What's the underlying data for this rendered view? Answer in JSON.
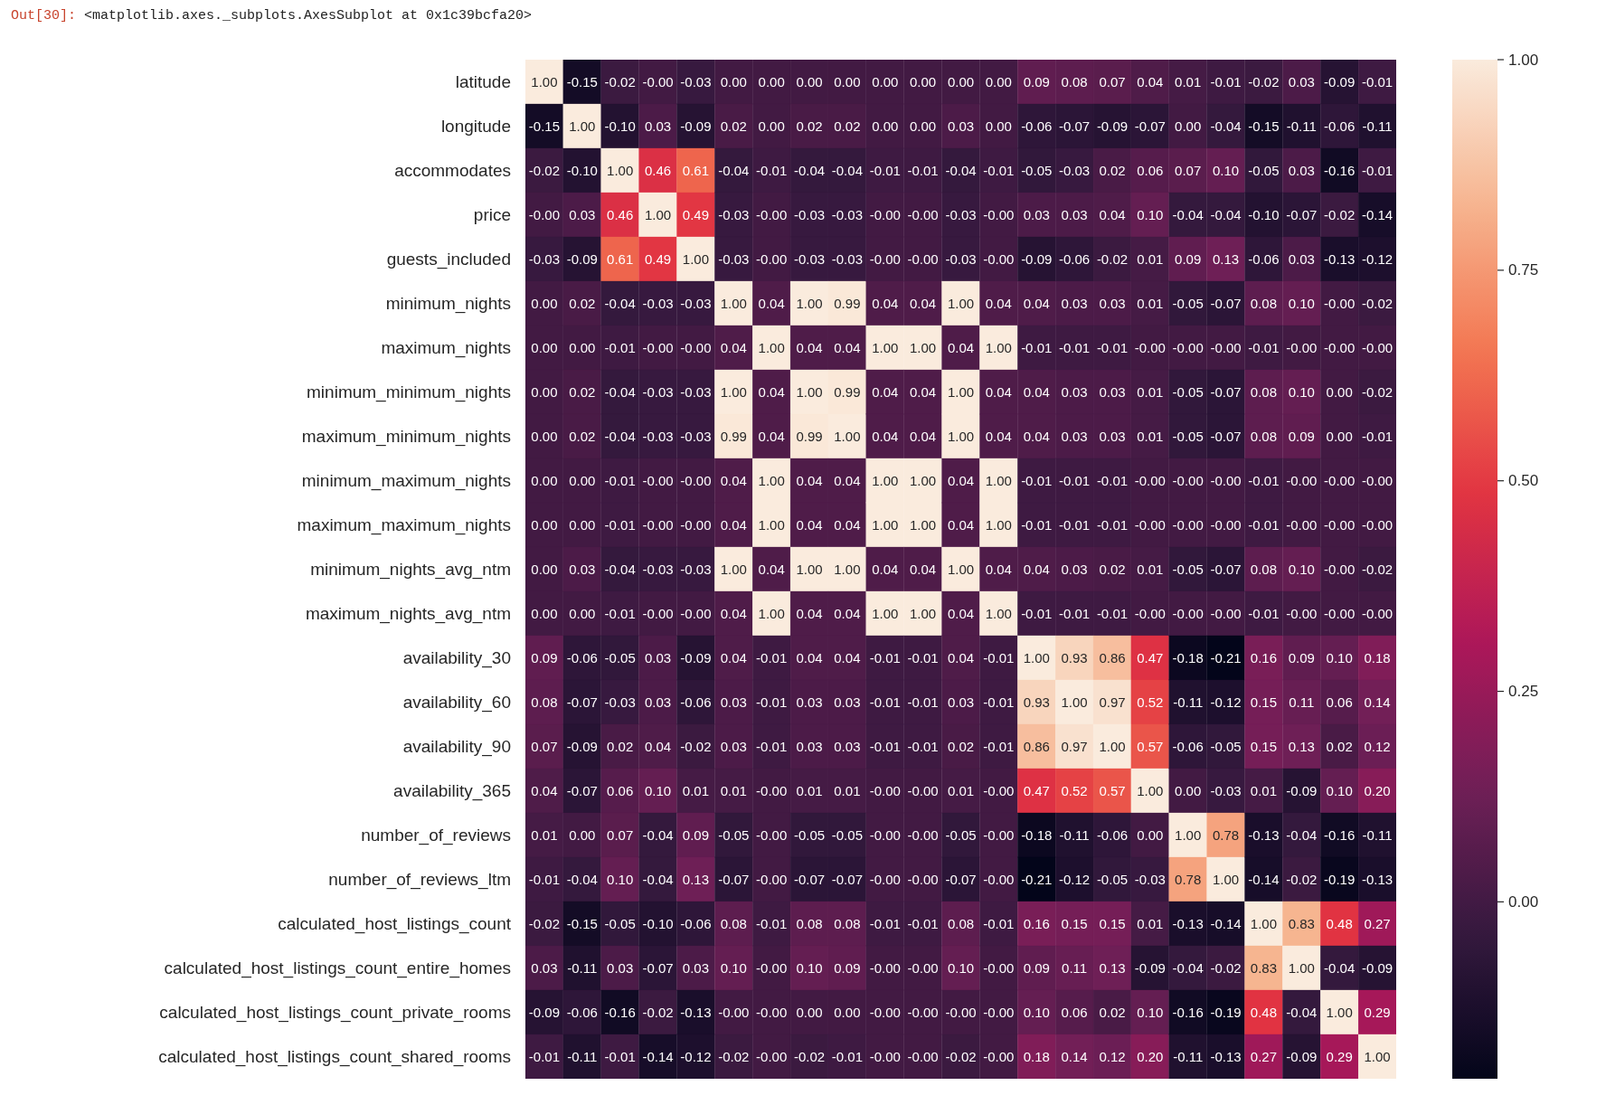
{
  "chart_data": {
    "type": "heatmap",
    "annotations": [
      "Out[30]:",
      "<matplotlib.axes._subplots.AxesSubplot at 0x1c39bcfa20>"
    ],
    "categories": [
      null,
      null,
      null,
      null,
      null,
      null,
      null,
      null,
      null,
      null,
      null,
      null,
      null,
      null,
      null,
      null,
      null,
      null,
      null,
      null,
      null,
      null,
      null
    ],
    "y_categories": [
      "latitude",
      "longitude",
      "accommodates",
      "price",
      "guests_included",
      "minimum_nights",
      "maximum_nights",
      "minimum_minimum_nights",
      "maximum_minimum_nights",
      "minimum_maximum_nights",
      "maximum_maximum_nights",
      "minimum_nights_avg_ntm",
      "maximum_nights_avg_ntm",
      "availability_30",
      "availability_60",
      "availability_90",
      "availability_365",
      "number_of_reviews",
      "number_of_reviews_ltm",
      "calculated_host_listings_count",
      "calculated_host_listings_count_entire_homes",
      "calculated_host_listings_count_private_rooms",
      "calculated_host_listings_count_shared_rooms"
    ],
    "cells": [
      [
        1,
        -0.15,
        -0.02,
        0,
        -0.03,
        0,
        0,
        0,
        0,
        0,
        0,
        0,
        0,
        0.09,
        0.08,
        0.07,
        0.04,
        0.01,
        -0.01,
        -0.02,
        0.03,
        -0.09,
        -0.01
      ],
      [
        -0.15,
        1,
        -0.1,
        0.03,
        -0.09,
        0.02,
        0,
        0.02,
        0.02,
        0,
        0,
        0.03,
        0,
        -0.06,
        -0.07,
        -0.09,
        -0.07,
        0,
        -0.04,
        -0.15,
        -0.11,
        -0.06,
        -0.11
      ],
      [
        -0.02,
        -0.1,
        1,
        0.46,
        0.61,
        -0.04,
        -0.01,
        -0.04,
        -0.04,
        -0.01,
        -0.01,
        -0.04,
        -0.01,
        -0.05,
        -0.03,
        0.02,
        0.06,
        0.07,
        0.1,
        -0.05,
        0.03,
        -0.16,
        -0.01
      ],
      [
        0,
        0.03,
        0.46,
        1,
        0.49,
        -0.03,
        0,
        -0.03,
        -0.03,
        0,
        0,
        -0.03,
        0,
        0.03,
        0.03,
        0.04,
        0.1,
        -0.04,
        -0.04,
        -0.1,
        -0.07,
        -0.02,
        -0.14
      ],
      [
        -0.03,
        -0.09,
        0.61,
        0.49,
        1,
        -0.03,
        0,
        -0.03,
        -0.03,
        0,
        0,
        -0.03,
        0,
        -0.09,
        -0.06,
        -0.02,
        0.01,
        0.09,
        0.13,
        -0.06,
        0.03,
        -0.13,
        -0.12
      ],
      [
        0,
        0.02,
        -0.04,
        -0.03,
        -0.03,
        1,
        0.04,
        1,
        0.99,
        0.04,
        0.04,
        1,
        0.04,
        0.04,
        0.03,
        0.03,
        0.01,
        -0.05,
        -0.07,
        0.08,
        0.1,
        0,
        -0.02
      ],
      [
        0,
        0,
        -0.01,
        0,
        0,
        0.04,
        1,
        0.04,
        0.04,
        1,
        1,
        0.04,
        1,
        -0.01,
        -0.01,
        -0.01,
        0,
        0,
        0,
        -0.01,
        0,
        0,
        0
      ],
      [
        0,
        0.02,
        -0.04,
        -0.03,
        -0.03,
        1,
        0.04,
        1,
        0.99,
        0.04,
        0.04,
        1,
        0.04,
        0.04,
        0.03,
        0.03,
        0.01,
        -0.05,
        -0.07,
        0.08,
        0.1,
        0,
        -0.02
      ],
      [
        0,
        0.02,
        -0.04,
        -0.03,
        -0.03,
        0.99,
        0.04,
        0.99,
        1,
        0.04,
        0.04,
        1,
        0.04,
        0.04,
        0.03,
        0.03,
        0.01,
        -0.05,
        -0.07,
        0.08,
        0.09,
        0,
        -0.01
      ],
      [
        0,
        0,
        -0.01,
        0,
        0,
        0.04,
        1,
        0.04,
        0.04,
        1,
        1,
        0.04,
        1,
        -0.01,
        -0.01,
        -0.01,
        0,
        0,
        0,
        -0.01,
        0,
        0,
        0
      ],
      [
        0,
        0,
        -0.01,
        0,
        0,
        0.04,
        1,
        0.04,
        0.04,
        1,
        1,
        0.04,
        1,
        -0.01,
        -0.01,
        -0.01,
        0,
        0,
        0,
        -0.01,
        0,
        0,
        0
      ],
      [
        0,
        0.03,
        -0.04,
        -0.03,
        -0.03,
        1,
        0.04,
        1,
        1,
        0.04,
        0.04,
        1,
        0.04,
        0.04,
        0.03,
        0.02,
        0.01,
        -0.05,
        -0.07,
        0.08,
        0.1,
        0,
        -0.02
      ],
      [
        0,
        0,
        -0.01,
        0,
        0,
        0.04,
        1,
        0.04,
        0.04,
        1,
        1,
        0.04,
        1,
        -0.01,
        -0.01,
        -0.01,
        0,
        0,
        0,
        -0.01,
        0,
        0,
        0
      ],
      [
        0.09,
        -0.06,
        -0.05,
        0.03,
        -0.09,
        0.04,
        -0.01,
        0.04,
        0.04,
        -0.01,
        -0.01,
        0.04,
        -0.01,
        1,
        0.93,
        0.86,
        0.47,
        -0.18,
        -0.21,
        0.16,
        0.09,
        0.1,
        0.18
      ],
      [
        0.08,
        -0.07,
        -0.03,
        0.03,
        -0.06,
        0.03,
        -0.01,
        0.03,
        0.03,
        -0.01,
        -0.01,
        0.03,
        -0.01,
        0.93,
        1,
        0.97,
        0.52,
        -0.11,
        -0.12,
        0.15,
        0.11,
        0.06,
        0.14
      ],
      [
        0.07,
        -0.09,
        0.02,
        0.04,
        -0.02,
        0.03,
        -0.01,
        0.03,
        0.03,
        -0.01,
        -0.01,
        0.02,
        -0.01,
        0.86,
        0.97,
        1,
        0.57,
        -0.06,
        -0.05,
        0.15,
        0.13,
        0.02,
        0.12
      ],
      [
        0.04,
        -0.07,
        0.06,
        0.1,
        0.01,
        0.01,
        0,
        0.01,
        0.01,
        0,
        0,
        0.01,
        0,
        0.47,
        0.52,
        0.57,
        1,
        0,
        -0.03,
        0.01,
        -0.09,
        0.1,
        0.2
      ],
      [
        0.01,
        0,
        0.07,
        -0.04,
        0.09,
        -0.05,
        0,
        -0.05,
        -0.05,
        0,
        0,
        -0.05,
        0,
        -0.18,
        -0.11,
        -0.06,
        0,
        1,
        0.78,
        -0.13,
        -0.04,
        -0.16,
        -0.11
      ],
      [
        -0.01,
        -0.04,
        0.1,
        -0.04,
        0.13,
        -0.07,
        0,
        -0.07,
        -0.07,
        0,
        0,
        -0.07,
        0,
        -0.21,
        -0.12,
        -0.05,
        -0.03,
        0.78,
        1,
        -0.14,
        -0.02,
        -0.19,
        -0.13
      ],
      [
        -0.02,
        -0.15,
        -0.05,
        -0.1,
        -0.06,
        0.08,
        -0.01,
        0.08,
        0.08,
        -0.01,
        -0.01,
        0.08,
        -0.01,
        0.16,
        0.15,
        0.15,
        0.01,
        -0.13,
        -0.14,
        1,
        0.83,
        0.48,
        0.27
      ],
      [
        0.03,
        -0.11,
        0.03,
        -0.07,
        0.03,
        0.1,
        0,
        0.1,
        0.09,
        0,
        0,
        0.1,
        0,
        0.09,
        0.11,
        0.13,
        -0.09,
        -0.04,
        -0.02,
        0.83,
        1,
        -0.04,
        -0.09
      ],
      [
        -0.09,
        -0.06,
        -0.16,
        -0.02,
        -0.13,
        0,
        0,
        0,
        0,
        0,
        0,
        0,
        0,
        0.1,
        0.06,
        0.02,
        0.1,
        -0.16,
        -0.19,
        0.48,
        -0.04,
        1,
        0.29
      ],
      [
        -0.01,
        -0.11,
        -0.01,
        -0.14,
        -0.12,
        -0.02,
        0,
        -0.02,
        -0.01,
        0,
        0,
        -0.02,
        0,
        0.18,
        0.14,
        0.12,
        0.2,
        -0.11,
        -0.13,
        0.27,
        -0.09,
        0.29,
        1
      ]
    ],
    "cell_labels": [
      [
        "1.00",
        "-0.15",
        "-0.02",
        "-0.00",
        "-0.03",
        "0.00",
        "0.00",
        "0.00",
        "0.00",
        "0.00",
        "0.00",
        "0.00",
        "0.00",
        "0.09",
        "0.08",
        "0.07",
        "0.04",
        "0.01",
        "-0.01",
        "-0.02",
        "0.03",
        "-0.09",
        "-0.01"
      ],
      [
        "-0.15",
        "1.00",
        "-0.10",
        "0.03",
        "-0.09",
        "0.02",
        "0.00",
        "0.02",
        "0.02",
        "0.00",
        "0.00",
        "0.03",
        "0.00",
        "-0.06",
        "-0.07",
        "-0.09",
        "-0.07",
        "0.00",
        "-0.04",
        "-0.15",
        "-0.11",
        "-0.06",
        "-0.11"
      ],
      [
        "-0.02",
        "-0.10",
        "1.00",
        "0.46",
        "0.61",
        "-0.04",
        "-0.01",
        "-0.04",
        "-0.04",
        "-0.01",
        "-0.01",
        "-0.04",
        "-0.01",
        "-0.05",
        "-0.03",
        "0.02",
        "0.06",
        "0.07",
        "0.10",
        "-0.05",
        "0.03",
        "-0.16",
        "-0.01"
      ],
      [
        "-0.00",
        "0.03",
        "0.46",
        "1.00",
        "0.49",
        "-0.03",
        "-0.00",
        "-0.03",
        "-0.03",
        "-0.00",
        "-0.00",
        "-0.03",
        "-0.00",
        "0.03",
        "0.03",
        "0.04",
        "0.10",
        "-0.04",
        "-0.04",
        "-0.10",
        "-0.07",
        "-0.02",
        "-0.14"
      ],
      [
        "-0.03",
        "-0.09",
        "0.61",
        "0.49",
        "1.00",
        "-0.03",
        "-0.00",
        "-0.03",
        "-0.03",
        "-0.00",
        "-0.00",
        "-0.03",
        "-0.00",
        "-0.09",
        "-0.06",
        "-0.02",
        "0.01",
        "0.09",
        "0.13",
        "-0.06",
        "0.03",
        "-0.13",
        "-0.12"
      ],
      [
        "0.00",
        "0.02",
        "-0.04",
        "-0.03",
        "-0.03",
        "1.00",
        "0.04",
        "1.00",
        "0.99",
        "0.04",
        "0.04",
        "1.00",
        "0.04",
        "0.04",
        "0.03",
        "0.03",
        "0.01",
        "-0.05",
        "-0.07",
        "0.08",
        "0.10",
        "-0.00",
        "-0.02"
      ],
      [
        "0.00",
        "0.00",
        "-0.01",
        "-0.00",
        "-0.00",
        "0.04",
        "1.00",
        "0.04",
        "0.04",
        "1.00",
        "1.00",
        "0.04",
        "1.00",
        "-0.01",
        "-0.01",
        "-0.01",
        "-0.00",
        "-0.00",
        "-0.00",
        "-0.01",
        "-0.00",
        "-0.00",
        "-0.00"
      ],
      [
        "0.00",
        "0.02",
        "-0.04",
        "-0.03",
        "-0.03",
        "1.00",
        "0.04",
        "1.00",
        "0.99",
        "0.04",
        "0.04",
        "1.00",
        "0.04",
        "0.04",
        "0.03",
        "0.03",
        "0.01",
        "-0.05",
        "-0.07",
        "0.08",
        "0.10",
        "0.00",
        "-0.02"
      ],
      [
        "0.00",
        "0.02",
        "-0.04",
        "-0.03",
        "-0.03",
        "0.99",
        "0.04",
        "0.99",
        "1.00",
        "0.04",
        "0.04",
        "1.00",
        "0.04",
        "0.04",
        "0.03",
        "0.03",
        "0.01",
        "-0.05",
        "-0.07",
        "0.08",
        "0.09",
        "0.00",
        "-0.01"
      ],
      [
        "0.00",
        "0.00",
        "-0.01",
        "-0.00",
        "-0.00",
        "0.04",
        "1.00",
        "0.04",
        "0.04",
        "1.00",
        "1.00",
        "0.04",
        "1.00",
        "-0.01",
        "-0.01",
        "-0.01",
        "-0.00",
        "-0.00",
        "-0.00",
        "-0.01",
        "-0.00",
        "-0.00",
        "-0.00"
      ],
      [
        "0.00",
        "0.00",
        "-0.01",
        "-0.00",
        "-0.00",
        "0.04",
        "1.00",
        "0.04",
        "0.04",
        "1.00",
        "1.00",
        "0.04",
        "1.00",
        "-0.01",
        "-0.01",
        "-0.01",
        "-0.00",
        "-0.00",
        "-0.00",
        "-0.01",
        "-0.00",
        "-0.00",
        "-0.00"
      ],
      [
        "0.00",
        "0.03",
        "-0.04",
        "-0.03",
        "-0.03",
        "1.00",
        "0.04",
        "1.00",
        "1.00",
        "0.04",
        "0.04",
        "1.00",
        "0.04",
        "0.04",
        "0.03",
        "0.02",
        "0.01",
        "-0.05",
        "-0.07",
        "0.08",
        "0.10",
        "-0.00",
        "-0.02"
      ],
      [
        "0.00",
        "0.00",
        "-0.01",
        "-0.00",
        "-0.00",
        "0.04",
        "1.00",
        "0.04",
        "0.04",
        "1.00",
        "1.00",
        "0.04",
        "1.00",
        "-0.01",
        "-0.01",
        "-0.01",
        "-0.00",
        "-0.00",
        "-0.00",
        "-0.01",
        "-0.00",
        "-0.00",
        "-0.00"
      ],
      [
        "0.09",
        "-0.06",
        "-0.05",
        "0.03",
        "-0.09",
        "0.04",
        "-0.01",
        "0.04",
        "0.04",
        "-0.01",
        "-0.01",
        "0.04",
        "-0.01",
        "1.00",
        "0.93",
        "0.86",
        "0.47",
        "-0.18",
        "-0.21",
        "0.16",
        "0.09",
        "0.10",
        "0.18"
      ],
      [
        "0.08",
        "-0.07",
        "-0.03",
        "0.03",
        "-0.06",
        "0.03",
        "-0.01",
        "0.03",
        "0.03",
        "-0.01",
        "-0.01",
        "0.03",
        "-0.01",
        "0.93",
        "1.00",
        "0.97",
        "0.52",
        "-0.11",
        "-0.12",
        "0.15",
        "0.11",
        "0.06",
        "0.14"
      ],
      [
        "0.07",
        "-0.09",
        "0.02",
        "0.04",
        "-0.02",
        "0.03",
        "-0.01",
        "0.03",
        "0.03",
        "-0.01",
        "-0.01",
        "0.02",
        "-0.01",
        "0.86",
        "0.97",
        "1.00",
        "0.57",
        "-0.06",
        "-0.05",
        "0.15",
        "0.13",
        "0.02",
        "0.12"
      ],
      [
        "0.04",
        "-0.07",
        "0.06",
        "0.10",
        "0.01",
        "0.01",
        "-0.00",
        "0.01",
        "0.01",
        "-0.00",
        "-0.00",
        "0.01",
        "-0.00",
        "0.47",
        "0.52",
        "0.57",
        "1.00",
        "0.00",
        "-0.03",
        "0.01",
        "-0.09",
        "0.10",
        "0.20"
      ],
      [
        "0.01",
        "0.00",
        "0.07",
        "-0.04",
        "0.09",
        "-0.05",
        "-0.00",
        "-0.05",
        "-0.05",
        "-0.00",
        "-0.00",
        "-0.05",
        "-0.00",
        "-0.18",
        "-0.11",
        "-0.06",
        "0.00",
        "1.00",
        "0.78",
        "-0.13",
        "-0.04",
        "-0.16",
        "-0.11"
      ],
      [
        "-0.01",
        "-0.04",
        "0.10",
        "-0.04",
        "0.13",
        "-0.07",
        "-0.00",
        "-0.07",
        "-0.07",
        "-0.00",
        "-0.00",
        "-0.07",
        "-0.00",
        "-0.21",
        "-0.12",
        "-0.05",
        "-0.03",
        "0.78",
        "1.00",
        "-0.14",
        "-0.02",
        "-0.19",
        "-0.13"
      ],
      [
        "-0.02",
        "-0.15",
        "-0.05",
        "-0.10",
        "-0.06",
        "0.08",
        "-0.01",
        "0.08",
        "0.08",
        "-0.01",
        "-0.01",
        "0.08",
        "-0.01",
        "0.16",
        "0.15",
        "0.15",
        "0.01",
        "-0.13",
        "-0.14",
        "1.00",
        "0.83",
        "0.48",
        "0.27"
      ],
      [
        "0.03",
        "-0.11",
        "0.03",
        "-0.07",
        "0.03",
        "0.10",
        "-0.00",
        "0.10",
        "0.09",
        "-0.00",
        "-0.00",
        "0.10",
        "-0.00",
        "0.09",
        "0.11",
        "0.13",
        "-0.09",
        "-0.04",
        "-0.02",
        "0.83",
        "1.00",
        "-0.04",
        "-0.09"
      ],
      [
        "-0.09",
        "-0.06",
        "-0.16",
        "-0.02",
        "-0.13",
        "-0.00",
        "-0.00",
        "0.00",
        "0.00",
        "-0.00",
        "-0.00",
        "-0.00",
        "-0.00",
        "0.10",
        "0.06",
        "0.02",
        "0.10",
        "-0.16",
        "-0.19",
        "0.48",
        "-0.04",
        "1.00",
        "0.29"
      ],
      [
        "-0.01",
        "-0.11",
        "-0.01",
        "-0.14",
        "-0.12",
        "-0.02",
        "-0.00",
        "-0.02",
        "-0.01",
        "-0.00",
        "-0.00",
        "-0.02",
        "-0.00",
        "0.18",
        "0.14",
        "0.12",
        "0.20",
        "-0.11",
        "-0.13",
        "0.27",
        "-0.09",
        "0.29",
        "1.00"
      ]
    ],
    "clim": [
      -0.21,
      1
    ],
    "cticks": [
      {
        "value": 0,
        "label": "0.00"
      },
      {
        "value": 0.25,
        "label": "0.25"
      },
      {
        "value": 0.5,
        "label": "0.50"
      },
      {
        "value": 0.75,
        "label": "0.75"
      },
      {
        "value": 1,
        "label": "1.00"
      }
    ],
    "tick_labels": "y"
  }
}
